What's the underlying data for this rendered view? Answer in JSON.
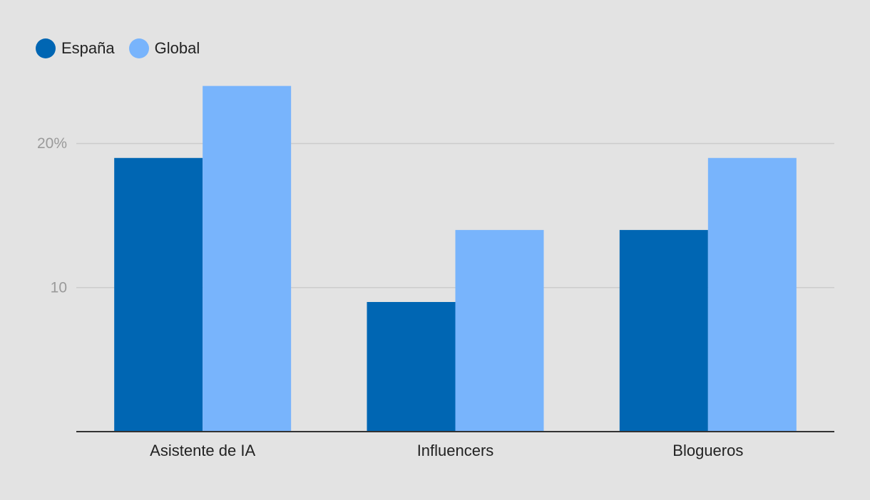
{
  "chart_data": {
    "type": "bar",
    "categories": [
      "Asistente de IA",
      "Influencers",
      "Blogueros"
    ],
    "series": [
      {
        "name": "España",
        "values": [
          19,
          9,
          14
        ],
        "color": "#0066b3"
      },
      {
        "name": "Global",
        "values": [
          24,
          14,
          19
        ],
        "color": "#78b4fc"
      }
    ],
    "ylim": [
      0,
      27
    ],
    "yticks": [
      {
        "value": 10,
        "label": "10"
      },
      {
        "value": 20,
        "label": "20%"
      }
    ],
    "legend_position": "top-left",
    "grid": true,
    "colors": {
      "background": "#e3e3e3",
      "gridline": "#cccccc",
      "axis": "#333333"
    }
  }
}
